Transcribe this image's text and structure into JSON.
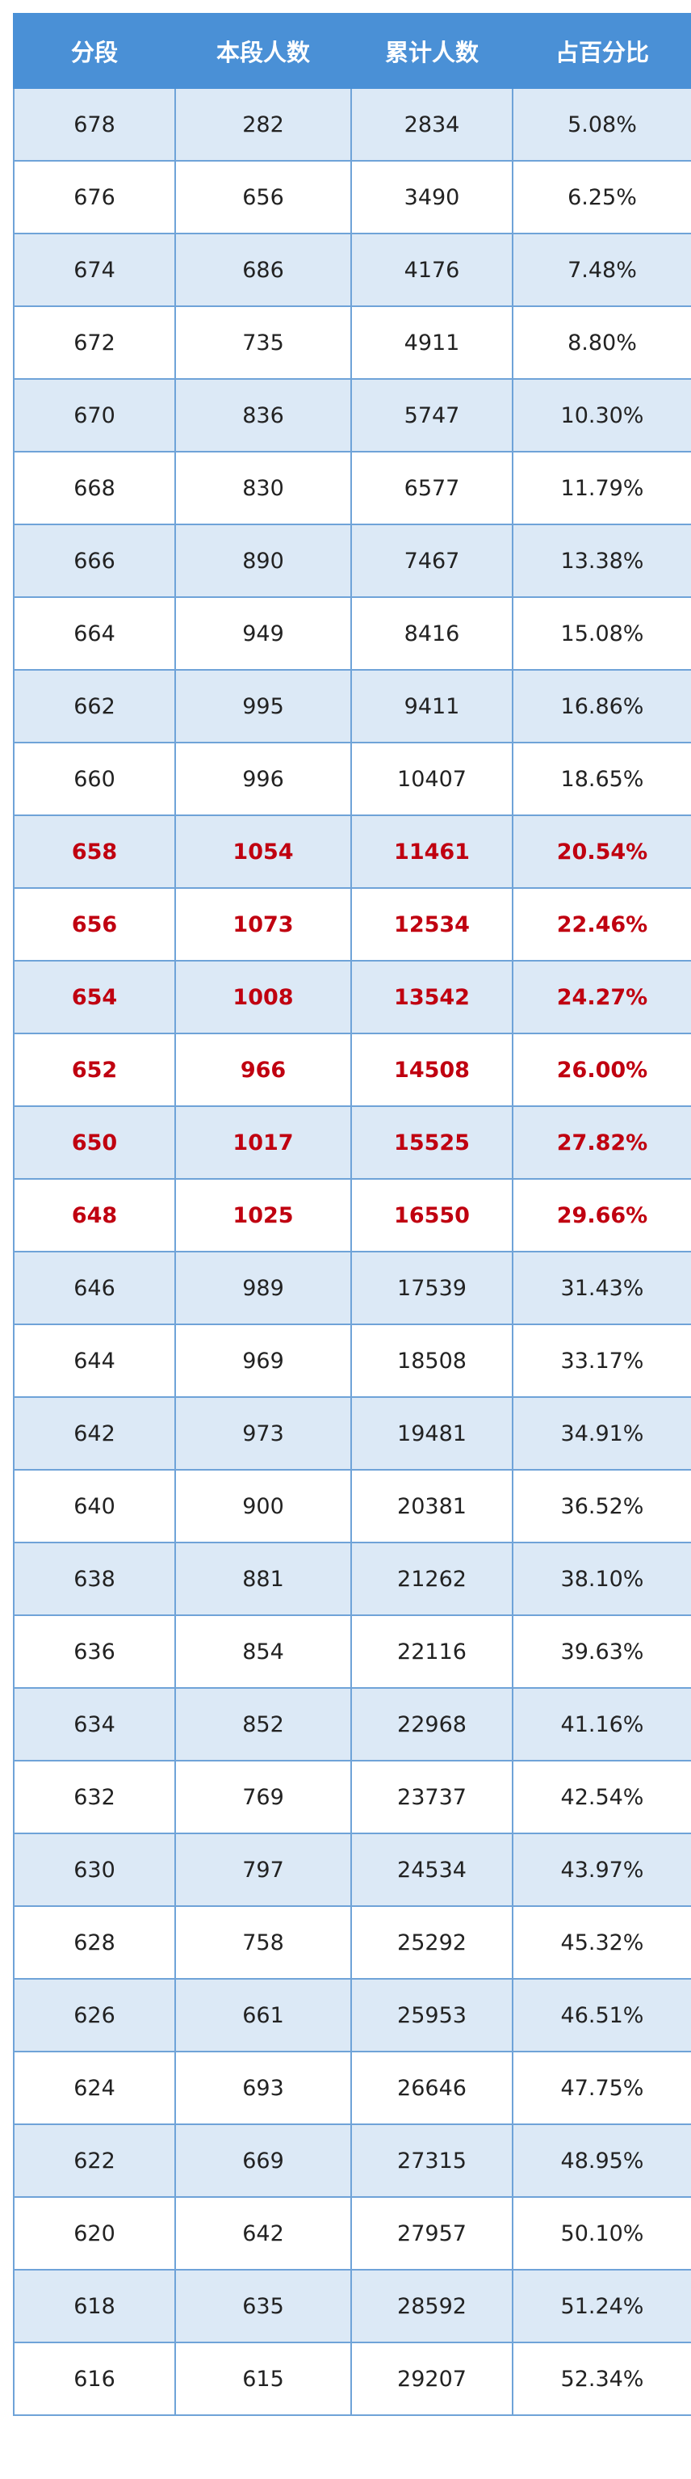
{
  "table": {
    "headers": [
      "分段",
      "本段人数",
      "累计人数",
      "占百分比"
    ],
    "rows": [
      [
        "678",
        "282",
        "2834",
        "5.08%"
      ],
      [
        "676",
        "656",
        "3490",
        "6.25%"
      ],
      [
        "674",
        "686",
        "4176",
        "7.48%"
      ],
      [
        "672",
        "735",
        "4911",
        "8.80%"
      ],
      [
        "670",
        "836",
        "5747",
        "10.30%"
      ],
      [
        "668",
        "830",
        "6577",
        "11.79%"
      ],
      [
        "666",
        "890",
        "7467",
        "13.38%"
      ],
      [
        "664",
        "949",
        "8416",
        "15.08%"
      ],
      [
        "662",
        "995",
        "9411",
        "16.86%"
      ],
      [
        "660",
        "996",
        "10407",
        "18.65%"
      ],
      [
        "658",
        "1054",
        "11461",
        "20.54%"
      ],
      [
        "656",
        "1073",
        "12534",
        "22.46%"
      ],
      [
        "654",
        "1008",
        "13542",
        "24.27%"
      ],
      [
        "652",
        "966",
        "14508",
        "26.00%"
      ],
      [
        "650",
        "1017",
        "15525",
        "27.82%"
      ],
      [
        "648",
        "1025",
        "16550",
        "29.66%"
      ],
      [
        "646",
        "989",
        "17539",
        "31.43%"
      ],
      [
        "644",
        "969",
        "18508",
        "33.17%"
      ],
      [
        "642",
        "973",
        "19481",
        "34.91%"
      ],
      [
        "640",
        "900",
        "20381",
        "36.52%"
      ],
      [
        "638",
        "881",
        "21262",
        "38.10%"
      ],
      [
        "636",
        "854",
        "22116",
        "39.63%"
      ],
      [
        "634",
        "852",
        "22968",
        "41.16%"
      ],
      [
        "632",
        "769",
        "23737",
        "42.54%"
      ],
      [
        "630",
        "797",
        "24534",
        "43.97%"
      ],
      [
        "628",
        "758",
        "25292",
        "45.32%"
      ],
      [
        "626",
        "661",
        "25953",
        "46.51%"
      ],
      [
        "624",
        "693",
        "26646",
        "47.75%"
      ],
      [
        "622",
        "669",
        "27315",
        "48.95%"
      ],
      [
        "620",
        "642",
        "27957",
        "50.10%"
      ],
      [
        "618",
        "635",
        "28592",
        "51.24%"
      ],
      [
        "616",
        "615",
        "29207",
        "52.34%"
      ]
    ],
    "highlighted_rows": [
      10,
      11,
      12,
      13,
      14,
      15
    ],
    "colors": {
      "header_bg": "#4a90d6",
      "header_text": "#ffffff",
      "stripe_bg": "#dce9f6",
      "border": "#6fa3d8",
      "highlight_text": "#c00010"
    }
  }
}
